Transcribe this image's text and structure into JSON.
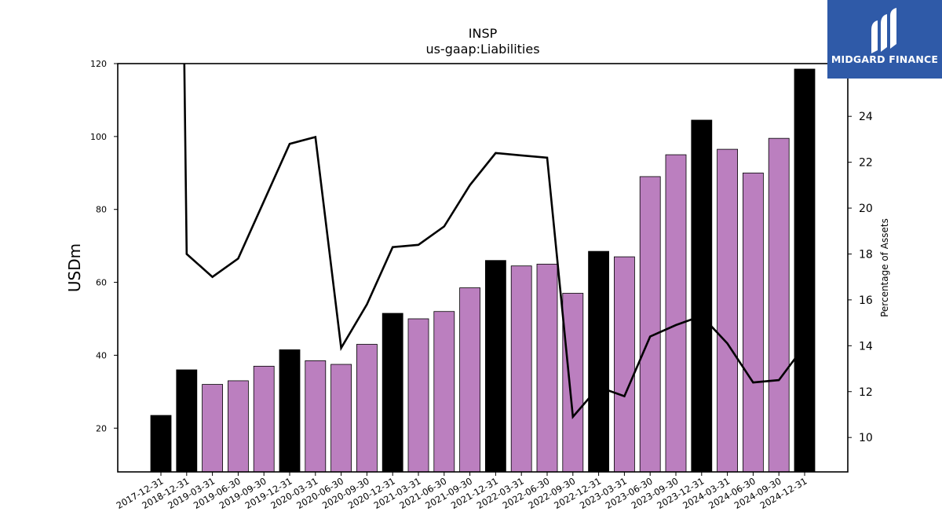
{
  "brand": {
    "name": "MIDGARD FINANCE",
    "logo_color": "#2f5aa8"
  },
  "chart_data": {
    "type": "bar",
    "title": "INSP",
    "subtitle": "us-gaap:Liabilities",
    "ylabel": "USDm",
    "y2label": "Percentage of Assets",
    "ylim": [
      8,
      120
    ],
    "y2lim": [
      8.5,
      26.3
    ],
    "yticks": [
      20,
      40,
      60,
      80,
      100,
      120
    ],
    "y2ticks": [
      10,
      12,
      14,
      16,
      18,
      20,
      22,
      24
    ],
    "categories": [
      "2017-12-31",
      "2018-12-31",
      "2019-03-31",
      "2019-06-30",
      "2019-09-30",
      "2019-12-31",
      "2020-03-31",
      "2020-06-30",
      "2020-09-30",
      "2020-12-31",
      "2021-03-31",
      "2021-06-30",
      "2021-09-30",
      "2021-12-31",
      "2022-03-31",
      "2022-06-30",
      "2022-09-30",
      "2022-12-31",
      "2023-03-31",
      "2023-06-30",
      "2023-09-30",
      "2023-12-31",
      "2024-03-31",
      "2024-06-30",
      "2024-09-30",
      "2024-12-31"
    ],
    "series": [
      {
        "kind": "bar",
        "values": [
          23.5,
          36.0,
          32.0,
          33.0,
          37.0,
          41.5,
          38.5,
          37.5,
          43.0,
          51.5,
          50.0,
          52.0,
          58.5,
          66.0,
          64.5,
          65.0,
          57.0,
          68.5,
          67.0,
          89.0,
          95.0,
          104.5,
          96.5,
          90.0,
          99.5,
          118.5
        ],
        "annual_color": "#000000",
        "quarter_color": "#bb7fbf"
      },
      {
        "kind": "line",
        "axis": "right",
        "values": [
          27.5,
          18.0,
          17.0,
          17.8,
          20.3,
          22.8,
          23.1,
          13.9,
          15.8,
          18.3,
          18.4,
          19.2,
          21.0,
          22.4,
          22.3,
          22.2,
          10.9,
          12.2,
          11.8,
          14.4,
          14.9,
          15.3,
          14.1,
          12.4,
          12.5,
          14.0
        ],
        "color": "#000000"
      }
    ],
    "annual_flags": [
      true,
      true,
      false,
      false,
      false,
      true,
      false,
      false,
      false,
      true,
      false,
      false,
      false,
      true,
      false,
      false,
      false,
      true,
      false,
      false,
      false,
      true,
      false,
      false,
      false,
      true
    ]
  }
}
